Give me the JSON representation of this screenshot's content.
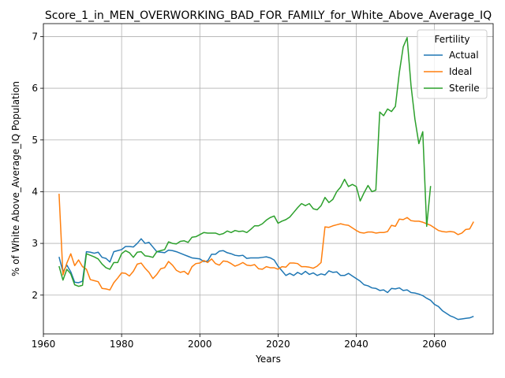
{
  "chart_data": {
    "type": "line",
    "title": "Score_1_in_MEN_OVERWORKING_BAD_FOR_FAMILY_for_White_Above_Average_IQ",
    "xlabel": "Years",
    "ylabel": "% of White Above_Average_IQ Population",
    "xlim": [
      1960,
      2075
    ],
    "ylim": [
      1.25,
      7.25
    ],
    "xticks": [
      1960,
      1980,
      2000,
      2020,
      2040,
      2060
    ],
    "yticks": [
      2,
      3,
      4,
      5,
      6,
      7
    ],
    "grid": true,
    "legend": {
      "title": "Fertility",
      "placement": "top-right"
    },
    "series": [
      {
        "name": "Actual",
        "color": "#1f77b4",
        "points": [
          [
            1964,
            2.74
          ],
          [
            1965,
            2.45
          ],
          [
            1966,
            2.58
          ],
          [
            1967,
            2.45
          ],
          [
            1968,
            2.25
          ],
          [
            1969,
            2.24
          ],
          [
            1970,
            2.27
          ],
          [
            1971,
            2.84
          ],
          [
            1972,
            2.83
          ],
          [
            1973,
            2.81
          ],
          [
            1974,
            2.83
          ],
          [
            1975,
            2.73
          ],
          [
            1976,
            2.71
          ],
          [
            1977,
            2.64
          ],
          [
            1978,
            2.84
          ],
          [
            1979,
            2.86
          ],
          [
            1980,
            2.88
          ],
          [
            1981,
            2.94
          ],
          [
            1982,
            2.94
          ],
          [
            1983,
            2.93
          ],
          [
            1984,
            3.0
          ],
          [
            1985,
            3.09
          ],
          [
            1986,
            3.0
          ],
          [
            1987,
            3.02
          ],
          [
            1988,
            2.93
          ],
          [
            1989,
            2.84
          ],
          [
            1990,
            2.83
          ],
          [
            1991,
            2.82
          ],
          [
            1992,
            2.87
          ],
          [
            1993,
            2.86
          ],
          [
            1994,
            2.84
          ],
          [
            1995,
            2.81
          ],
          [
            1996,
            2.78
          ],
          [
            1997,
            2.75
          ],
          [
            1998,
            2.72
          ],
          [
            1999,
            2.71
          ],
          [
            2000,
            2.7
          ],
          [
            2001,
            2.65
          ],
          [
            2002,
            2.66
          ],
          [
            2003,
            2.79
          ],
          [
            2004,
            2.79
          ],
          [
            2005,
            2.85
          ],
          [
            2006,
            2.86
          ],
          [
            2007,
            2.82
          ],
          [
            2008,
            2.8
          ],
          [
            2009,
            2.77
          ],
          [
            2010,
            2.76
          ],
          [
            2011,
            2.77
          ],
          [
            2012,
            2.71
          ],
          [
            2013,
            2.72
          ],
          [
            2014,
            2.72
          ],
          [
            2015,
            2.72
          ],
          [
            2016,
            2.73
          ],
          [
            2017,
            2.74
          ],
          [
            2018,
            2.72
          ],
          [
            2019,
            2.68
          ],
          [
            2020,
            2.56
          ],
          [
            2021,
            2.47
          ],
          [
            2022,
            2.38
          ],
          [
            2023,
            2.42
          ],
          [
            2024,
            2.38
          ],
          [
            2025,
            2.44
          ],
          [
            2026,
            2.4
          ],
          [
            2027,
            2.46
          ],
          [
            2028,
            2.4
          ],
          [
            2029,
            2.43
          ],
          [
            2030,
            2.38
          ],
          [
            2031,
            2.41
          ],
          [
            2032,
            2.39
          ],
          [
            2033,
            2.47
          ],
          [
            2034,
            2.44
          ],
          [
            2035,
            2.45
          ],
          [
            2036,
            2.38
          ],
          [
            2037,
            2.38
          ],
          [
            2038,
            2.42
          ],
          [
            2039,
            2.37
          ],
          [
            2040,
            2.32
          ],
          [
            2041,
            2.27
          ],
          [
            2042,
            2.2
          ],
          [
            2043,
            2.18
          ],
          [
            2044,
            2.14
          ],
          [
            2045,
            2.13
          ],
          [
            2046,
            2.09
          ],
          [
            2047,
            2.1
          ],
          [
            2048,
            2.05
          ],
          [
            2049,
            2.13
          ],
          [
            2050,
            2.12
          ],
          [
            2051,
            2.14
          ],
          [
            2052,
            2.09
          ],
          [
            2053,
            2.1
          ],
          [
            2054,
            2.05
          ],
          [
            2055,
            2.04
          ],
          [
            2056,
            2.02
          ],
          [
            2057,
            1.99
          ],
          [
            2058,
            1.94
          ],
          [
            2059,
            1.9
          ],
          [
            2060,
            1.82
          ],
          [
            2061,
            1.78
          ],
          [
            2062,
            1.7
          ],
          [
            2063,
            1.65
          ],
          [
            2064,
            1.6
          ],
          [
            2065,
            1.57
          ],
          [
            2066,
            1.53
          ],
          [
            2067,
            1.54
          ],
          [
            2068,
            1.55
          ],
          [
            2069,
            1.56
          ],
          [
            2070,
            1.59
          ]
        ]
      },
      {
        "name": "Ideal",
        "color": "#ff7f0e",
        "points": [
          [
            1964,
            3.96
          ],
          [
            1965,
            2.39
          ],
          [
            1966,
            2.62
          ],
          [
            1967,
            2.8
          ],
          [
            1968,
            2.57
          ],
          [
            1969,
            2.68
          ],
          [
            1970,
            2.55
          ],
          [
            1971,
            2.5
          ],
          [
            1972,
            2.3
          ],
          [
            1973,
            2.28
          ],
          [
            1974,
            2.26
          ],
          [
            1975,
            2.13
          ],
          [
            1976,
            2.12
          ],
          [
            1977,
            2.1
          ],
          [
            1978,
            2.24
          ],
          [
            1979,
            2.33
          ],
          [
            1980,
            2.43
          ],
          [
            1981,
            2.42
          ],
          [
            1982,
            2.37
          ],
          [
            1983,
            2.46
          ],
          [
            1984,
            2.6
          ],
          [
            1985,
            2.62
          ],
          [
            1986,
            2.52
          ],
          [
            1987,
            2.44
          ],
          [
            1988,
            2.32
          ],
          [
            1989,
            2.4
          ],
          [
            1990,
            2.51
          ],
          [
            1991,
            2.53
          ],
          [
            1992,
            2.65
          ],
          [
            1993,
            2.58
          ],
          [
            1994,
            2.48
          ],
          [
            1995,
            2.44
          ],
          [
            1996,
            2.46
          ],
          [
            1997,
            2.4
          ],
          [
            1998,
            2.55
          ],
          [
            1999,
            2.61
          ],
          [
            2000,
            2.62
          ],
          [
            2001,
            2.67
          ],
          [
            2002,
            2.63
          ],
          [
            2003,
            2.7
          ],
          [
            2004,
            2.61
          ],
          [
            2005,
            2.58
          ],
          [
            2006,
            2.66
          ],
          [
            2007,
            2.65
          ],
          [
            2008,
            2.61
          ],
          [
            2009,
            2.56
          ],
          [
            2010,
            2.59
          ],
          [
            2011,
            2.63
          ],
          [
            2012,
            2.58
          ],
          [
            2013,
            2.57
          ],
          [
            2014,
            2.59
          ],
          [
            2015,
            2.51
          ],
          [
            2016,
            2.5
          ],
          [
            2017,
            2.55
          ],
          [
            2018,
            2.53
          ],
          [
            2019,
            2.53
          ],
          [
            2020,
            2.5
          ],
          [
            2021,
            2.55
          ],
          [
            2022,
            2.54
          ],
          [
            2023,
            2.62
          ],
          [
            2024,
            2.62
          ],
          [
            2025,
            2.61
          ],
          [
            2026,
            2.55
          ],
          [
            2027,
            2.55
          ],
          [
            2028,
            2.54
          ],
          [
            2029,
            2.52
          ],
          [
            2030,
            2.56
          ],
          [
            2031,
            2.63
          ],
          [
            2032,
            3.32
          ],
          [
            2033,
            3.31
          ],
          [
            2034,
            3.34
          ],
          [
            2035,
            3.36
          ],
          [
            2036,
            3.38
          ],
          [
            2037,
            3.36
          ],
          [
            2038,
            3.35
          ],
          [
            2039,
            3.3
          ],
          [
            2040,
            3.25
          ],
          [
            2041,
            3.21
          ],
          [
            2042,
            3.2
          ],
          [
            2043,
            3.22
          ],
          [
            2044,
            3.22
          ],
          [
            2045,
            3.2
          ],
          [
            2046,
            3.21
          ],
          [
            2047,
            3.21
          ],
          [
            2048,
            3.23
          ],
          [
            2049,
            3.35
          ],
          [
            2050,
            3.33
          ],
          [
            2051,
            3.47
          ],
          [
            2052,
            3.46
          ],
          [
            2053,
            3.5
          ],
          [
            2054,
            3.44
          ],
          [
            2055,
            3.43
          ],
          [
            2056,
            3.43
          ],
          [
            2057,
            3.41
          ],
          [
            2058,
            3.38
          ],
          [
            2059,
            3.35
          ],
          [
            2060,
            3.3
          ],
          [
            2061,
            3.25
          ],
          [
            2062,
            3.23
          ],
          [
            2063,
            3.22
          ],
          [
            2064,
            3.23
          ],
          [
            2065,
            3.22
          ],
          [
            2066,
            3.17
          ],
          [
            2067,
            3.2
          ],
          [
            2068,
            3.27
          ],
          [
            2069,
            3.28
          ],
          [
            2070,
            3.42
          ]
        ]
      },
      {
        "name": "Sterile",
        "color": "#2ca02c",
        "points": [
          [
            1964,
            2.56
          ],
          [
            1965,
            2.29
          ],
          [
            1966,
            2.5
          ],
          [
            1967,
            2.41
          ],
          [
            1968,
            2.2
          ],
          [
            1969,
            2.17
          ],
          [
            1970,
            2.19
          ],
          [
            1971,
            2.8
          ],
          [
            1972,
            2.77
          ],
          [
            1973,
            2.74
          ],
          [
            1974,
            2.7
          ],
          [
            1975,
            2.6
          ],
          [
            1976,
            2.53
          ],
          [
            1977,
            2.5
          ],
          [
            1978,
            2.63
          ],
          [
            1979,
            2.63
          ],
          [
            1980,
            2.8
          ],
          [
            1981,
            2.86
          ],
          [
            1982,
            2.82
          ],
          [
            1983,
            2.73
          ],
          [
            1984,
            2.83
          ],
          [
            1985,
            2.84
          ],
          [
            1986,
            2.76
          ],
          [
            1987,
            2.75
          ],
          [
            1988,
            2.73
          ],
          [
            1989,
            2.84
          ],
          [
            1990,
            2.86
          ],
          [
            1991,
            2.88
          ],
          [
            1992,
            3.03
          ],
          [
            1993,
            3.0
          ],
          [
            1994,
            2.99
          ],
          [
            1995,
            3.04
          ],
          [
            1996,
            3.05
          ],
          [
            1997,
            3.02
          ],
          [
            1998,
            3.12
          ],
          [
            1999,
            3.13
          ],
          [
            2000,
            3.17
          ],
          [
            2001,
            3.21
          ],
          [
            2002,
            3.2
          ],
          [
            2003,
            3.2
          ],
          [
            2004,
            3.2
          ],
          [
            2005,
            3.17
          ],
          [
            2006,
            3.19
          ],
          [
            2007,
            3.24
          ],
          [
            2008,
            3.21
          ],
          [
            2009,
            3.25
          ],
          [
            2010,
            3.23
          ],
          [
            2011,
            3.24
          ],
          [
            2012,
            3.21
          ],
          [
            2013,
            3.27
          ],
          [
            2014,
            3.34
          ],
          [
            2015,
            3.34
          ],
          [
            2016,
            3.38
          ],
          [
            2017,
            3.45
          ],
          [
            2018,
            3.5
          ],
          [
            2019,
            3.53
          ],
          [
            2020,
            3.39
          ],
          [
            2021,
            3.43
          ],
          [
            2022,
            3.46
          ],
          [
            2023,
            3.51
          ],
          [
            2024,
            3.6
          ],
          [
            2025,
            3.69
          ],
          [
            2026,
            3.77
          ],
          [
            2027,
            3.73
          ],
          [
            2028,
            3.77
          ],
          [
            2029,
            3.67
          ],
          [
            2030,
            3.65
          ],
          [
            2031,
            3.73
          ],
          [
            2032,
            3.89
          ],
          [
            2033,
            3.79
          ],
          [
            2034,
            3.85
          ],
          [
            2035,
            4.0
          ],
          [
            2036,
            4.09
          ],
          [
            2037,
            4.24
          ],
          [
            2038,
            4.1
          ],
          [
            2039,
            4.14
          ],
          [
            2040,
            4.1
          ],
          [
            2041,
            3.82
          ],
          [
            2042,
            3.98
          ],
          [
            2043,
            4.12
          ],
          [
            2044,
            4.0
          ],
          [
            2045,
            4.03
          ],
          [
            2046,
            5.54
          ],
          [
            2047,
            5.47
          ],
          [
            2048,
            5.6
          ],
          [
            2049,
            5.55
          ],
          [
            2050,
            5.65
          ],
          [
            2051,
            6.3
          ],
          [
            2052,
            6.8
          ],
          [
            2053,
            6.98
          ],
          [
            2054,
            6.05
          ],
          [
            2055,
            5.4
          ],
          [
            2056,
            4.93
          ],
          [
            2057,
            5.16
          ],
          [
            2058,
            3.33
          ],
          [
            2059,
            4.11
          ]
        ]
      }
    ]
  }
}
